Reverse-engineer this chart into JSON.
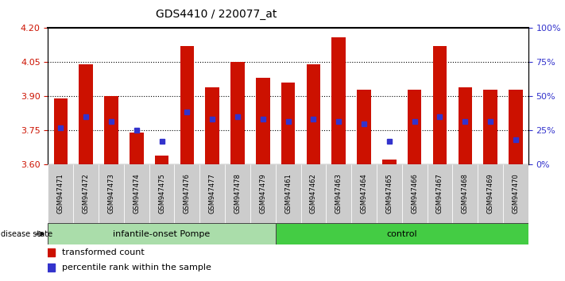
{
  "title": "GDS4410 / 220077_at",
  "samples": [
    "GSM947471",
    "GSM947472",
    "GSM947473",
    "GSM947474",
    "GSM947475",
    "GSM947476",
    "GSM947477",
    "GSM947478",
    "GSM947479",
    "GSM947461",
    "GSM947462",
    "GSM947463",
    "GSM947464",
    "GSM947465",
    "GSM947466",
    "GSM947467",
    "GSM947468",
    "GSM947469",
    "GSM947470"
  ],
  "bar_tops": [
    3.89,
    4.04,
    3.9,
    3.74,
    3.64,
    4.12,
    3.94,
    4.05,
    3.98,
    3.96,
    4.04,
    4.16,
    3.93,
    3.62,
    3.93,
    4.12,
    3.94,
    3.93,
    3.93
  ],
  "blue_pos": [
    3.76,
    3.81,
    3.79,
    3.75,
    3.7,
    3.83,
    3.8,
    3.81,
    3.8,
    3.79,
    3.8,
    3.79,
    3.78,
    3.7,
    3.79,
    3.81,
    3.79,
    3.79,
    3.71
  ],
  "bar_bottom": 3.6,
  "ylim_left": [
    3.6,
    4.2
  ],
  "ylim_right": [
    0,
    100
  ],
  "yticks_left": [
    3.6,
    3.75,
    3.9,
    4.05,
    4.2
  ],
  "yticks_right": [
    0,
    25,
    50,
    75,
    100
  ],
  "ytick_labels_right": [
    "0%",
    "25%",
    "50%",
    "75%",
    "100%"
  ],
  "hlines": [
    3.75,
    3.9,
    4.05
  ],
  "bar_color": "#CC1100",
  "blue_color": "#3333CC",
  "group1_label": "infantile-onset Pompe",
  "group2_label": "control",
  "group1_count": 9,
  "group2_count": 10,
  "group1_color": "#AADDAA",
  "group2_color": "#44CC44",
  "disease_label": "disease state",
  "legend1": "transformed count",
  "legend2": "percentile rank within the sample",
  "bar_width": 0.55,
  "tick_color_left": "#CC1100",
  "tick_color_right": "#3333CC"
}
